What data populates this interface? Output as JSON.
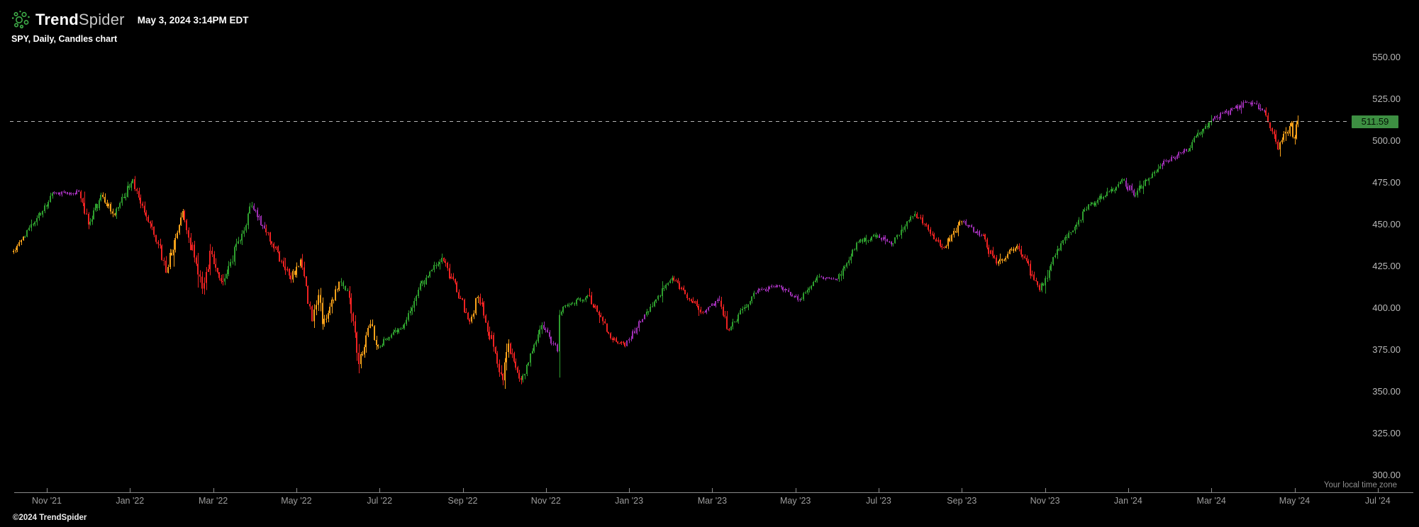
{
  "header": {
    "brand_bold": "Trend",
    "brand_light": "Spider",
    "timestamp": "May 3, 2024 3:14PM EDT",
    "subtitle": "SPY, Daily, Candles chart"
  },
  "footer": {
    "copyright": "©2024 TrendSpider"
  },
  "price_scale": {
    "last_price_label": "511.59",
    "last_price_bg": "#3d8f42",
    "tick_labels": [
      "550.00",
      "525.00",
      "500.00",
      "475.00",
      "450.00",
      "425.00",
      "400.00",
      "375.00",
      "350.00",
      "325.00",
      "300.00"
    ]
  },
  "time_scale": {
    "tick_labels": [
      "Nov '21",
      "Jan '22",
      "Mar '22",
      "May '22",
      "Jul '22",
      "Sep '22",
      "Nov '22",
      "Jan '23",
      "Mar '23",
      "May '23",
      "Jul '23",
      "Sep '23",
      "Nov '23",
      "Jan '24",
      "Mar '24",
      "May '24",
      "Jul '24"
    ],
    "note": "Your local time zone"
  },
  "chart_data": {
    "type": "candlestick",
    "symbol": "SPY",
    "timeframe": "Daily",
    "title": "SPY, Daily, Candles chart",
    "y_range": [
      300,
      550
    ],
    "y_tick_step": 25,
    "x_start_label": "Nov '21",
    "x_end_label": "Jul '24",
    "grid": false,
    "last_price": 511.59,
    "last_price_line": "dashed",
    "colors": {
      "green": "#2e9e2e",
      "red": "#ee2222",
      "purple": "#9e2fb3",
      "orange": "#f9a21a",
      "dashed_line": "#b5b5b5"
    },
    "anchors_format": "[months_since_2021_11_01, close_price, candle_color_of_segment_ending_here]",
    "anchors": [
      [
        -0.8,
        434,
        "orange"
      ],
      [
        -0.57,
        442,
        "orange"
      ],
      [
        -0.33,
        450,
        "green"
      ],
      [
        0.13,
        468,
        "green"
      ],
      [
        0.77,
        469,
        "purple"
      ],
      [
        1.0,
        450,
        "red"
      ],
      [
        1.3,
        467,
        "green"
      ],
      [
        1.63,
        455,
        "orange"
      ],
      [
        2.07,
        477,
        "green"
      ],
      [
        2.67,
        438,
        "red"
      ],
      [
        2.87,
        421,
        "red"
      ],
      [
        3.27,
        457,
        "orange"
      ],
      [
        3.73,
        411,
        "red"
      ],
      [
        3.93,
        433,
        "red"
      ],
      [
        4.23,
        415,
        "red"
      ],
      [
        4.93,
        461,
        "green"
      ],
      [
        5.23,
        447,
        "purple"
      ],
      [
        5.87,
        417,
        "red"
      ],
      [
        6.1,
        429,
        "orange"
      ],
      [
        6.37,
        392,
        "red"
      ],
      [
        6.53,
        408,
        "orange"
      ],
      [
        6.63,
        389,
        "orange"
      ],
      [
        7.03,
        415,
        "orange"
      ],
      [
        7.23,
        410,
        "green"
      ],
      [
        7.5,
        365,
        "red"
      ],
      [
        7.77,
        390,
        "orange"
      ],
      [
        7.97,
        377,
        "orange"
      ],
      [
        8.6,
        390,
        "green"
      ],
      [
        8.93,
        411,
        "green"
      ],
      [
        9.5,
        430,
        "green"
      ],
      [
        10.17,
        392,
        "red"
      ],
      [
        10.37,
        407,
        "orange"
      ],
      [
        10.97,
        357,
        "red"
      ],
      [
        11.1,
        378,
        "orange"
      ],
      [
        11.4,
        357,
        "red"
      ],
      [
        11.9,
        389,
        "green"
      ],
      [
        12.27,
        374,
        "purple"
      ],
      [
        12.33,
        398,
        "green"
      ],
      [
        13.0,
        407,
        "green"
      ],
      [
        13.6,
        381,
        "red"
      ],
      [
        13.9,
        377,
        "red"
      ],
      [
        14.37,
        396,
        "purple"
      ],
      [
        15.03,
        418,
        "green"
      ],
      [
        15.77,
        397,
        "red"
      ],
      [
        16.17,
        404,
        "purple"
      ],
      [
        16.4,
        386,
        "red"
      ],
      [
        17.0,
        409,
        "green"
      ],
      [
        17.57,
        413,
        "purple"
      ],
      [
        18.1,
        405,
        "purple"
      ],
      [
        18.57,
        418,
        "green"
      ],
      [
        19.0,
        417,
        "purple"
      ],
      [
        19.47,
        439,
        "green"
      ],
      [
        19.97,
        443,
        "green"
      ],
      [
        20.3,
        438,
        "purple"
      ],
      [
        20.87,
        456,
        "green"
      ],
      [
        21.57,
        436,
        "red"
      ],
      [
        22.0,
        451,
        "orange"
      ],
      [
        22.47,
        443,
        "purple"
      ],
      [
        22.83,
        426,
        "red"
      ],
      [
        23.33,
        437,
        "orange"
      ],
      [
        23.87,
        410,
        "red"
      ],
      [
        24.43,
        440,
        "green"
      ],
      [
        25.0,
        459,
        "green"
      ],
      [
        25.9,
        476,
        "green"
      ],
      [
        26.13,
        467,
        "purple"
      ],
      [
        26.77,
        485,
        "green"
      ],
      [
        27.4,
        494,
        "purple"
      ],
      [
        28.0,
        512,
        "green"
      ],
      [
        28.9,
        523,
        "purple"
      ],
      [
        29.27,
        518,
        "purple"
      ],
      [
        29.6,
        495,
        "red"
      ],
      [
        29.93,
        510,
        "orange"
      ],
      [
        30.0,
        501,
        "orange"
      ],
      [
        30.07,
        511.59,
        "orange"
      ]
    ]
  }
}
